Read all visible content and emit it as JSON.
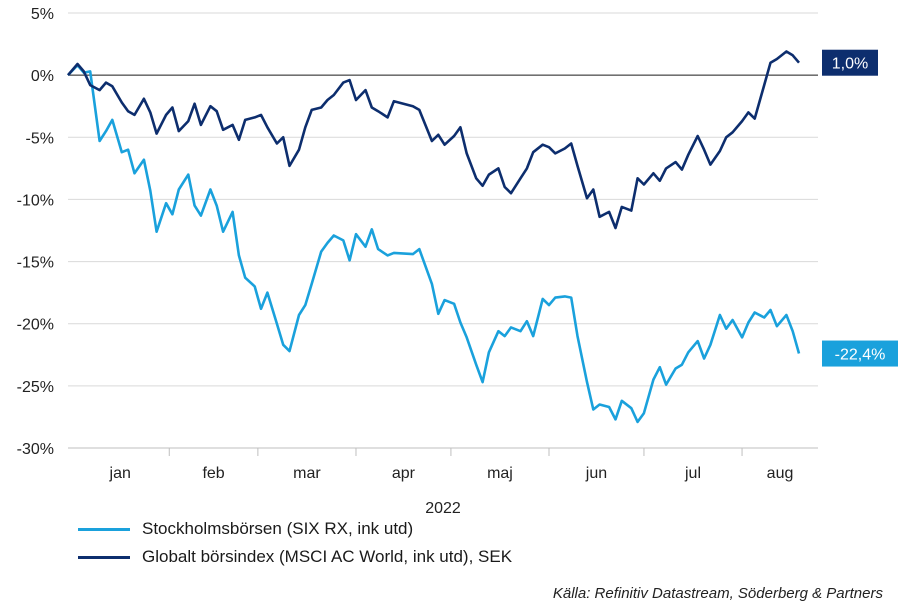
{
  "chart_data": {
    "type": "line",
    "year_label": "2022",
    "xlabel": "",
    "ylabel": "",
    "ylim": [
      -30,
      5
    ],
    "y_ticks": [
      5,
      0,
      -5,
      -10,
      -15,
      -20,
      -25,
      -30
    ],
    "y_tick_labels": [
      "5%",
      "0%",
      "-5%",
      "-10%",
      "-15%",
      "-20%",
      "-25%",
      "-30%"
    ],
    "x_range": [
      "2021-12-31",
      "2022-08-25"
    ],
    "months": [
      {
        "label": "jan",
        "start": "2022-01-01"
      },
      {
        "label": "feb",
        "start": "2022-02-01"
      },
      {
        "label": "mar",
        "start": "2022-03-01"
      },
      {
        "label": "apr",
        "start": "2022-04-01"
      },
      {
        "label": "maj",
        "start": "2022-05-01"
      },
      {
        "label": "jun",
        "start": "2022-06-01"
      },
      {
        "label": "jul",
        "start": "2022-07-01"
      },
      {
        "label": "aug",
        "start": "2022-08-01"
      }
    ],
    "zero_line": true,
    "grid": "horizontal",
    "legend_position": "bottom-left",
    "series": [
      {
        "name": "Stockholmsbörsen (SIX RX, ink utd)",
        "color": "#1aa1dc",
        "end_label": "-22,4%",
        "points": [
          [
            "2021-12-31",
            0.0
          ],
          [
            "2022-01-03",
            0.8
          ],
          [
            "2022-01-05",
            0.2
          ],
          [
            "2022-01-07",
            0.3
          ],
          [
            "2022-01-10",
            -5.3
          ],
          [
            "2022-01-12",
            -4.5
          ],
          [
            "2022-01-14",
            -3.6
          ],
          [
            "2022-01-17",
            -6.2
          ],
          [
            "2022-01-19",
            -6.0
          ],
          [
            "2022-01-21",
            -7.9
          ],
          [
            "2022-01-24",
            -6.8
          ],
          [
            "2022-01-26",
            -9.3
          ],
          [
            "2022-01-28",
            -12.6
          ],
          [
            "2022-01-31",
            -10.3
          ],
          [
            "2022-02-02",
            -11.2
          ],
          [
            "2022-02-04",
            -9.2
          ],
          [
            "2022-02-07",
            -8.0
          ],
          [
            "2022-02-09",
            -10.5
          ],
          [
            "2022-02-11",
            -11.3
          ],
          [
            "2022-02-14",
            -9.2
          ],
          [
            "2022-02-16",
            -10.5
          ],
          [
            "2022-02-18",
            -12.6
          ],
          [
            "2022-02-21",
            -11.0
          ],
          [
            "2022-02-23",
            -14.5
          ],
          [
            "2022-02-25",
            -16.3
          ],
          [
            "2022-02-28",
            -17.0
          ],
          [
            "2022-03-02",
            -18.8
          ],
          [
            "2022-03-04",
            -17.5
          ],
          [
            "2022-03-07",
            -20.0
          ],
          [
            "2022-03-09",
            -21.7
          ],
          [
            "2022-03-11",
            -22.2
          ],
          [
            "2022-03-14",
            -19.3
          ],
          [
            "2022-03-16",
            -18.5
          ],
          [
            "2022-03-18",
            -16.8
          ],
          [
            "2022-03-21",
            -14.2
          ],
          [
            "2022-03-23",
            -13.5
          ],
          [
            "2022-03-25",
            -12.9
          ],
          [
            "2022-03-28",
            -13.3
          ],
          [
            "2022-03-30",
            -14.9
          ],
          [
            "2022-04-01",
            -12.8
          ],
          [
            "2022-04-04",
            -13.8
          ],
          [
            "2022-04-06",
            -12.4
          ],
          [
            "2022-04-08",
            -14.0
          ],
          [
            "2022-04-11",
            -14.5
          ],
          [
            "2022-04-13",
            -14.3
          ],
          [
            "2022-04-19",
            -14.4
          ],
          [
            "2022-04-21",
            -14.0
          ],
          [
            "2022-04-25",
            -16.8
          ],
          [
            "2022-04-27",
            -19.2
          ],
          [
            "2022-04-29",
            -18.1
          ],
          [
            "2022-05-02",
            -18.4
          ],
          [
            "2022-05-04",
            -19.9
          ],
          [
            "2022-05-06",
            -21.1
          ],
          [
            "2022-05-09",
            -23.3
          ],
          [
            "2022-05-11",
            -24.7
          ],
          [
            "2022-05-13",
            -22.3
          ],
          [
            "2022-05-16",
            -20.6
          ],
          [
            "2022-05-18",
            -21.0
          ],
          [
            "2022-05-20",
            -20.3
          ],
          [
            "2022-05-23",
            -20.6
          ],
          [
            "2022-05-25",
            -19.8
          ],
          [
            "2022-05-27",
            -21.0
          ],
          [
            "2022-05-30",
            -18.0
          ],
          [
            "2022-06-01",
            -18.5
          ],
          [
            "2022-06-03",
            -17.9
          ],
          [
            "2022-06-06",
            -17.8
          ],
          [
            "2022-06-08",
            -17.9
          ],
          [
            "2022-06-10",
            -21.0
          ],
          [
            "2022-06-13",
            -24.7
          ],
          [
            "2022-06-15",
            -26.9
          ],
          [
            "2022-06-17",
            -26.5
          ],
          [
            "2022-06-20",
            -26.7
          ],
          [
            "2022-06-22",
            -27.7
          ],
          [
            "2022-06-24",
            -26.2
          ],
          [
            "2022-06-27",
            -26.8
          ],
          [
            "2022-06-29",
            -27.9
          ],
          [
            "2022-07-01",
            -27.2
          ],
          [
            "2022-07-04",
            -24.5
          ],
          [
            "2022-07-06",
            -23.5
          ],
          [
            "2022-07-08",
            -24.9
          ],
          [
            "2022-07-11",
            -23.6
          ],
          [
            "2022-07-13",
            -23.3
          ],
          [
            "2022-07-15",
            -22.3
          ],
          [
            "2022-07-18",
            -21.4
          ],
          [
            "2022-07-20",
            -22.8
          ],
          [
            "2022-07-22",
            -21.7
          ],
          [
            "2022-07-25",
            -19.3
          ],
          [
            "2022-07-27",
            -20.4
          ],
          [
            "2022-07-29",
            -19.7
          ],
          [
            "2022-08-01",
            -21.1
          ],
          [
            "2022-08-03",
            -19.9
          ],
          [
            "2022-08-05",
            -19.1
          ],
          [
            "2022-08-08",
            -19.5
          ],
          [
            "2022-08-10",
            -18.9
          ],
          [
            "2022-08-12",
            -20.2
          ],
          [
            "2022-08-15",
            -19.3
          ],
          [
            "2022-08-17",
            -20.6
          ],
          [
            "2022-08-19",
            -22.4
          ]
        ]
      },
      {
        "name": "Globalt börsindex (MSCI AC World, ink utd), SEK",
        "color": "#0d2e6e",
        "end_label": "1,0%",
        "points": [
          [
            "2021-12-31",
            0.0
          ],
          [
            "2022-01-03",
            0.9
          ],
          [
            "2022-01-05",
            0.3
          ],
          [
            "2022-01-07",
            -0.8
          ],
          [
            "2022-01-10",
            -1.2
          ],
          [
            "2022-01-12",
            -0.6
          ],
          [
            "2022-01-14",
            -0.9
          ],
          [
            "2022-01-17",
            -2.2
          ],
          [
            "2022-01-19",
            -2.9
          ],
          [
            "2022-01-21",
            -3.2
          ],
          [
            "2022-01-24",
            -1.9
          ],
          [
            "2022-01-26",
            -3.0
          ],
          [
            "2022-01-28",
            -4.7
          ],
          [
            "2022-01-31",
            -3.2
          ],
          [
            "2022-02-02",
            -2.6
          ],
          [
            "2022-02-04",
            -4.5
          ],
          [
            "2022-02-07",
            -3.7
          ],
          [
            "2022-02-09",
            -2.3
          ],
          [
            "2022-02-11",
            -4.0
          ],
          [
            "2022-02-14",
            -2.5
          ],
          [
            "2022-02-16",
            -2.9
          ],
          [
            "2022-02-18",
            -4.4
          ],
          [
            "2022-02-21",
            -4.0
          ],
          [
            "2022-02-23",
            -5.2
          ],
          [
            "2022-02-25",
            -3.6
          ],
          [
            "2022-02-28",
            -3.4
          ],
          [
            "2022-03-02",
            -3.2
          ],
          [
            "2022-03-04",
            -4.2
          ],
          [
            "2022-03-07",
            -5.5
          ],
          [
            "2022-03-09",
            -5.0
          ],
          [
            "2022-03-11",
            -7.3
          ],
          [
            "2022-03-14",
            -6.0
          ],
          [
            "2022-03-16",
            -4.2
          ],
          [
            "2022-03-18",
            -2.8
          ],
          [
            "2022-03-21",
            -2.6
          ],
          [
            "2022-03-23",
            -2.0
          ],
          [
            "2022-03-25",
            -1.6
          ],
          [
            "2022-03-28",
            -0.6
          ],
          [
            "2022-03-30",
            -0.4
          ],
          [
            "2022-04-01",
            -2.0
          ],
          [
            "2022-04-04",
            -1.2
          ],
          [
            "2022-04-06",
            -2.6
          ],
          [
            "2022-04-08",
            -2.9
          ],
          [
            "2022-04-11",
            -3.4
          ],
          [
            "2022-04-13",
            -2.1
          ],
          [
            "2022-04-19",
            -2.5
          ],
          [
            "2022-04-21",
            -2.8
          ],
          [
            "2022-04-25",
            -5.3
          ],
          [
            "2022-04-27",
            -4.8
          ],
          [
            "2022-04-29",
            -5.6
          ],
          [
            "2022-05-02",
            -4.9
          ],
          [
            "2022-05-04",
            -4.2
          ],
          [
            "2022-05-06",
            -6.3
          ],
          [
            "2022-05-09",
            -8.3
          ],
          [
            "2022-05-11",
            -8.9
          ],
          [
            "2022-05-13",
            -8.0
          ],
          [
            "2022-05-16",
            -7.5
          ],
          [
            "2022-05-18",
            -9.0
          ],
          [
            "2022-05-20",
            -9.5
          ],
          [
            "2022-05-23",
            -8.3
          ],
          [
            "2022-05-25",
            -7.5
          ],
          [
            "2022-05-27",
            -6.2
          ],
          [
            "2022-05-30",
            -5.6
          ],
          [
            "2022-06-01",
            -5.8
          ],
          [
            "2022-06-03",
            -6.3
          ],
          [
            "2022-06-06",
            -5.9
          ],
          [
            "2022-06-08",
            -5.5
          ],
          [
            "2022-06-10",
            -7.3
          ],
          [
            "2022-06-13",
            -9.9
          ],
          [
            "2022-06-15",
            -9.2
          ],
          [
            "2022-06-17",
            -11.4
          ],
          [
            "2022-06-20",
            -11.0
          ],
          [
            "2022-06-22",
            -12.3
          ],
          [
            "2022-06-24",
            -10.6
          ],
          [
            "2022-06-27",
            -10.9
          ],
          [
            "2022-06-29",
            -8.3
          ],
          [
            "2022-07-01",
            -8.8
          ],
          [
            "2022-07-04",
            -7.9
          ],
          [
            "2022-07-06",
            -8.5
          ],
          [
            "2022-07-08",
            -7.5
          ],
          [
            "2022-07-11",
            -7.0
          ],
          [
            "2022-07-13",
            -7.6
          ],
          [
            "2022-07-15",
            -6.4
          ],
          [
            "2022-07-18",
            -4.9
          ],
          [
            "2022-07-20",
            -6.0
          ],
          [
            "2022-07-22",
            -7.2
          ],
          [
            "2022-07-25",
            -6.1
          ],
          [
            "2022-07-27",
            -5.0
          ],
          [
            "2022-07-29",
            -4.6
          ],
          [
            "2022-08-01",
            -3.7
          ],
          [
            "2022-08-03",
            -3.0
          ],
          [
            "2022-08-05",
            -3.5
          ],
          [
            "2022-08-08",
            -0.8
          ],
          [
            "2022-08-10",
            1.0
          ],
          [
            "2022-08-12",
            1.3
          ],
          [
            "2022-08-15",
            1.9
          ],
          [
            "2022-08-17",
            1.6
          ],
          [
            "2022-08-19",
            1.0
          ]
        ]
      }
    ]
  },
  "source": "Källa: Refinitiv Datastream, Söderberg & Partners"
}
